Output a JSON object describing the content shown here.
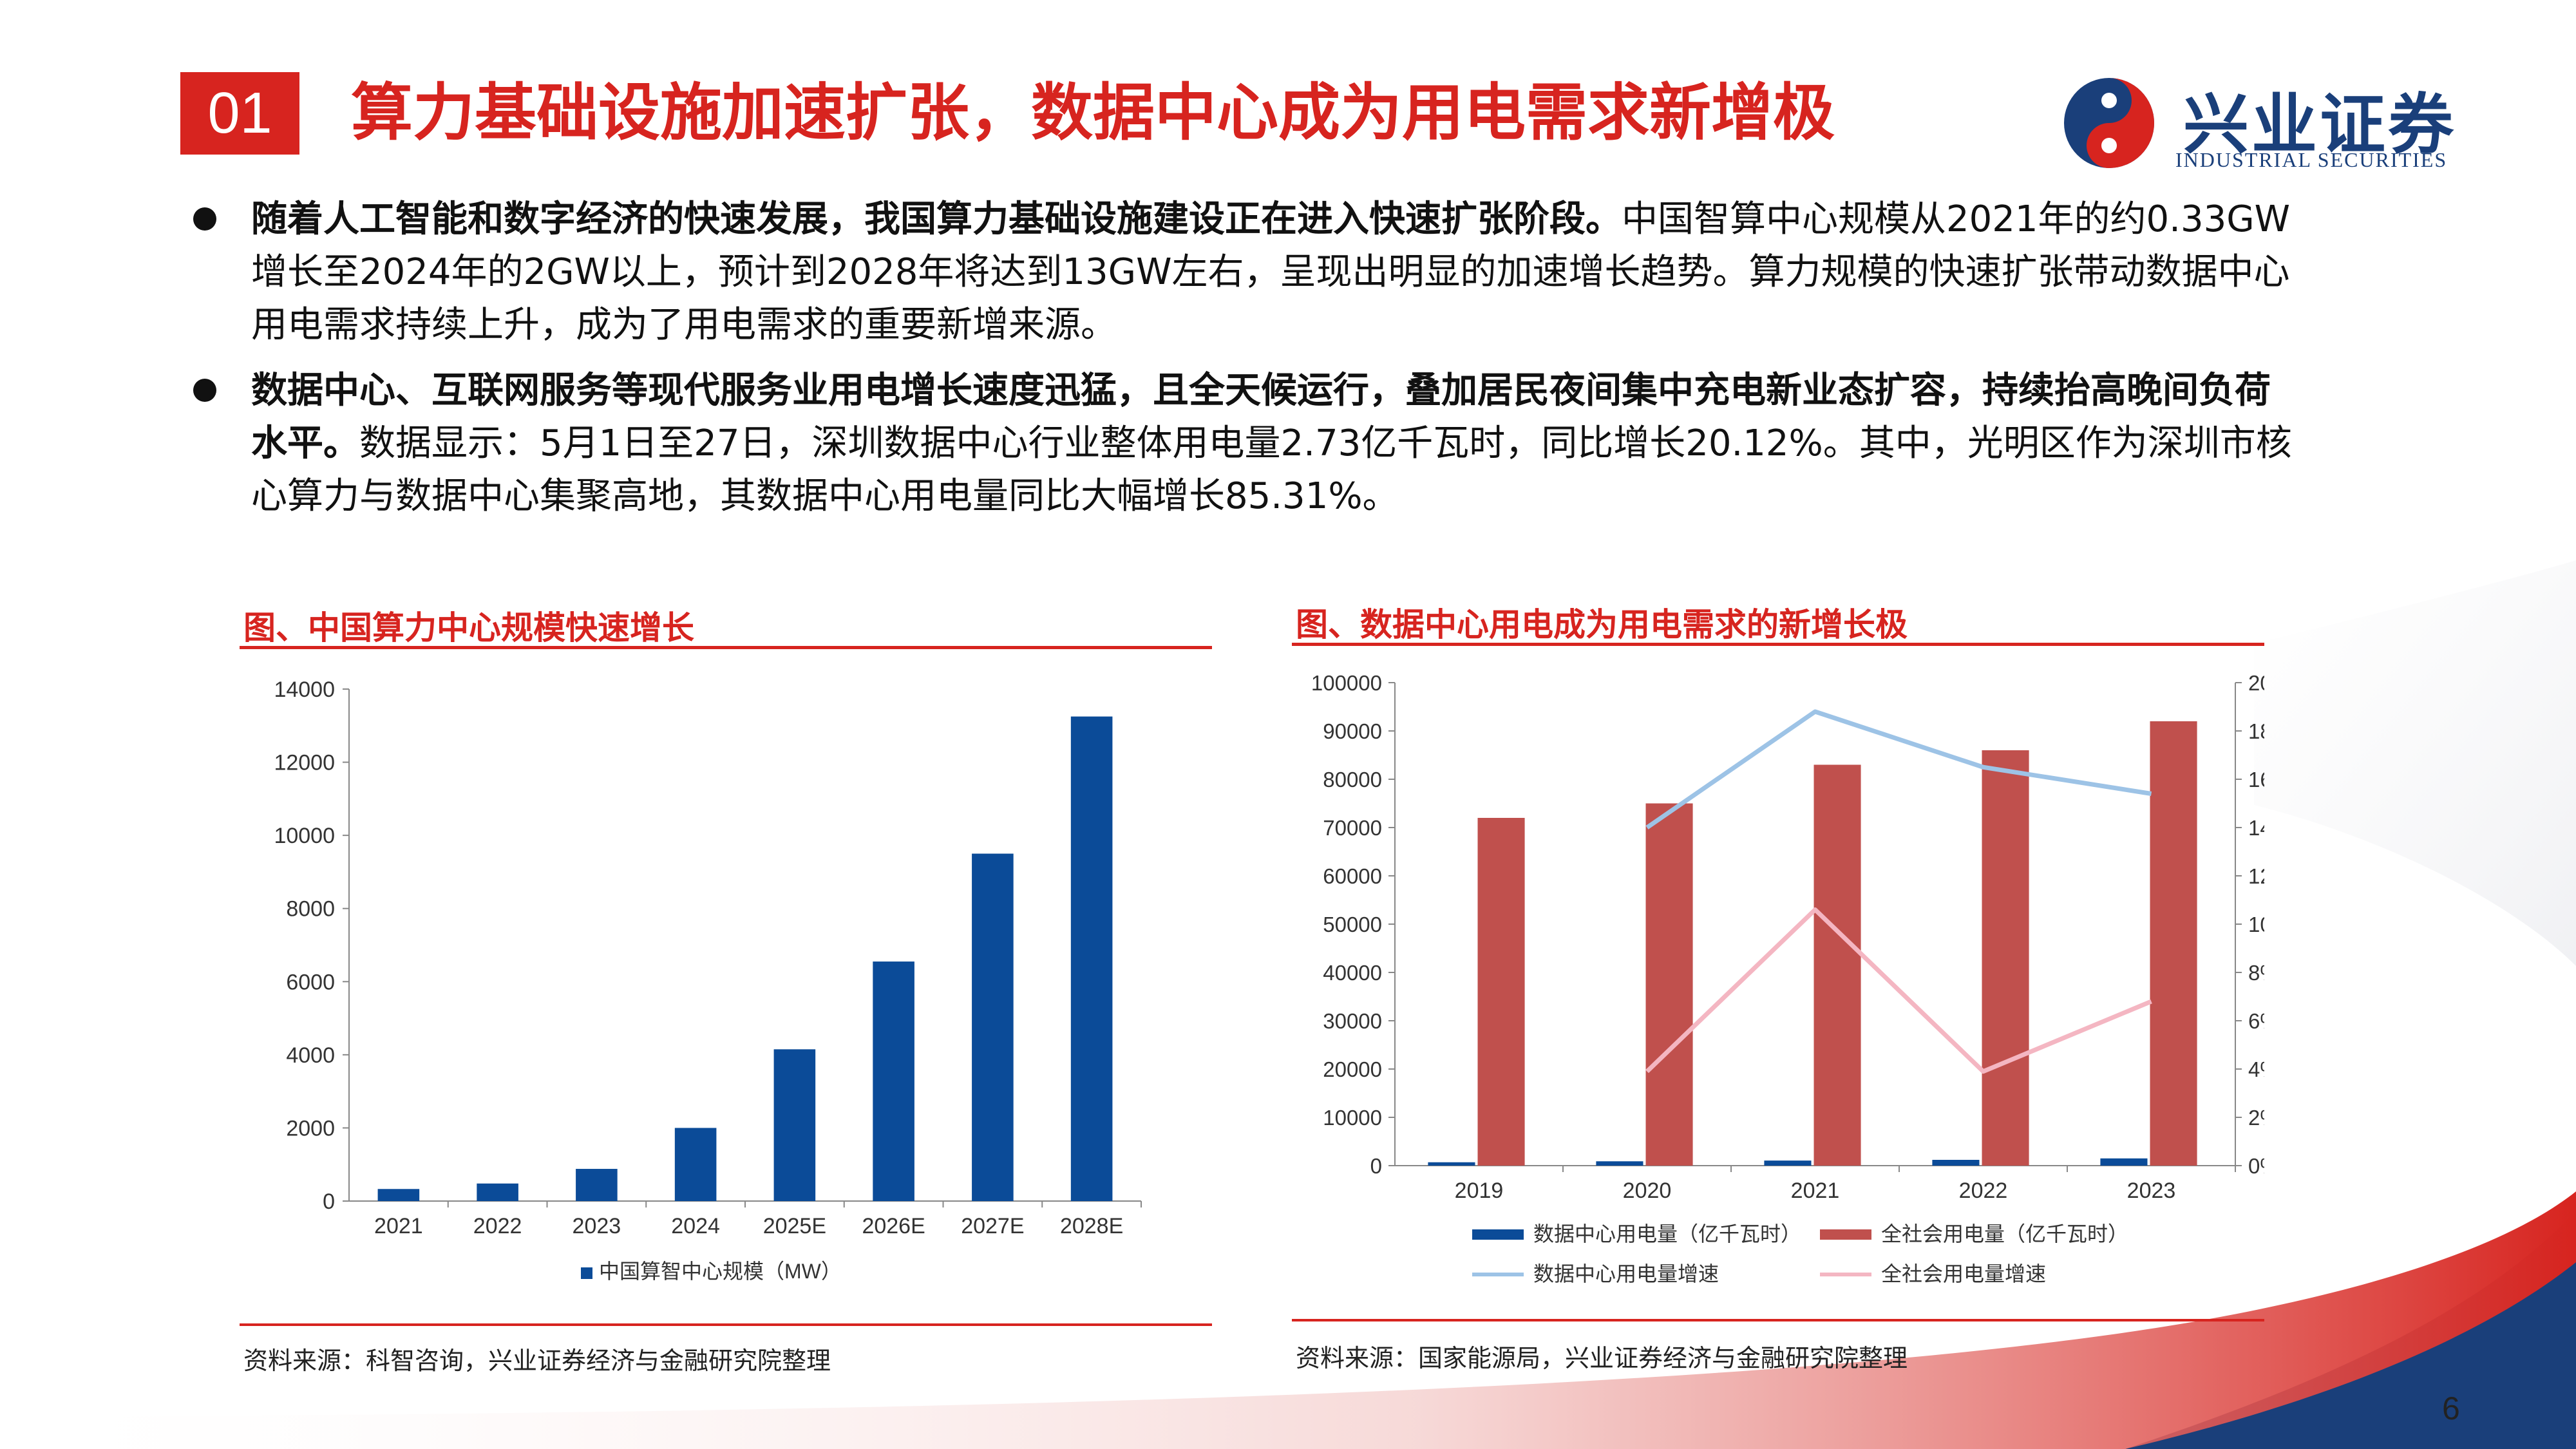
{
  "header": {
    "section_number": "01",
    "title": "算力基础设施加速扩张，数据中心成为用电需求新增极"
  },
  "logo": {
    "name_cn": "兴业证券",
    "name_en": "INDUSTRIAL SECURITIES",
    "colors": [
      "#1a3f7a",
      "#d7241f"
    ]
  },
  "bullets": [
    {
      "bold": "随着人工智能和数字经济的快速发展，我国算力基础设施建设正在进入快速扩张阶段。",
      "lines": [
        "中国智算中心规模从2021年的约0.33GW",
        "增长至2024年的2GW以上，预计到2028年将达到13GW左右，呈现出明显的加速增长趋势。算力规模的快速扩张带动数据中心",
        "用电需求持续上升，成为了用电需求的重要新增来源。"
      ]
    },
    {
      "bold1": "数据中心、互联网服务等现代服务业用电增长速度迅猛，且全天候运行，叠加居民夜间集中充电新业态扩容，持续抬高晚间负荷",
      "bold2": "水平。",
      "lines": [
        "数据显示：5月1日至27日，深圳数据中心行业整体用电量2.73亿千瓦时，同比增长20.12%。其中，光明区作为深圳市核",
        "心算力与数据中心集聚高地，其数据中心用电量同比大幅增长85.31%。"
      ]
    }
  ],
  "charts": {
    "left_title": "图、中国算力中心规模快速增长",
    "left_source": "资料来源：科智咨询，兴业证券经济与金融研究院整理",
    "right_title": "图、数据中心用电成为用电需求的新增长极",
    "right_source": "资料来源：国家能源局，兴业证券经济与金融研究院整理"
  },
  "page_number": "6",
  "chart_data": [
    {
      "type": "bar",
      "title": "图、中国算力中心规模快速增长",
      "categories": [
        "2021",
        "2022",
        "2023",
        "2024",
        "2025E",
        "2026E",
        "2027E",
        "2028E"
      ],
      "series": [
        {
          "name": "中国算智中心规模（MW）",
          "values": [
            330,
            480,
            880,
            2000,
            4150,
            6550,
            9500,
            13250
          ],
          "color": "#0b4b98"
        }
      ],
      "yticks": [
        "0",
        "2000",
        "4000",
        "6000",
        "8000",
        "10000",
        "12000",
        "14000"
      ],
      "ylim": [
        0,
        14000
      ],
      "legend": "bottom",
      "grid": false
    },
    {
      "type": "bar",
      "title": "图、数据中心用电成为用电需求的新增长极",
      "categories": [
        "2019",
        "2020",
        "2021",
        "2022",
        "2023"
      ],
      "series": [
        {
          "name": "数据中心用电量（亿千瓦时）",
          "type": "bar",
          "axis": "left",
          "values": [
            700,
            900,
            1050,
            1200,
            1500
          ],
          "color": "#0b4b98"
        },
        {
          "name": "全社会用电量（亿千瓦时）",
          "type": "bar",
          "axis": "left",
          "values": [
            72000,
            75000,
            83000,
            86000,
            92000
          ],
          "color": "#c0504d"
        },
        {
          "name": "数据中心用电量增速",
          "type": "line",
          "axis": "right",
          "values": [
            null,
            14.0,
            18.8,
            16.5,
            15.4
          ],
          "color": "#9dc3e6"
        },
        {
          "name": "全社会用电量增速",
          "type": "line",
          "axis": "right",
          "values": [
            null,
            3.9,
            10.6,
            3.9,
            6.8
          ],
          "color": "#f4b6c2"
        }
      ],
      "yticks_left": [
        "0",
        "10000",
        "20000",
        "30000",
        "40000",
        "50000",
        "60000",
        "70000",
        "80000",
        "90000",
        "100000"
      ],
      "yticks_right": [
        "0%",
        "2%",
        "4%",
        "6%",
        "8%",
        "10%",
        "12%",
        "14%",
        "16%",
        "18%",
        "20%"
      ],
      "ylim_left": [
        0,
        100000
      ],
      "ylim_right": [
        0,
        20
      ],
      "legend": "bottom",
      "grid": false
    }
  ]
}
